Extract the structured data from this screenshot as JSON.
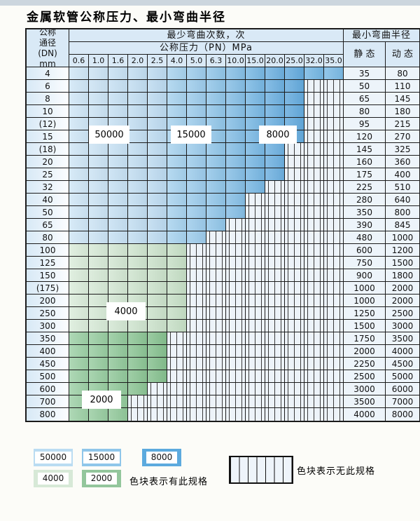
{
  "title": "金属软管公称压力、最小弯曲半径",
  "table": {
    "corner": [
      "公称",
      "通径",
      "(DN)",
      "mm"
    ],
    "bend_times_header": "最少弯曲次数，次",
    "pressure_header": "公称压力（PN）MPa",
    "pressures": [
      "0.6",
      "1.0",
      "1.6",
      "2.0",
      "2.5",
      "4.0",
      "5.0",
      "6.3",
      "10.0",
      "15.0",
      "20.0",
      "25.0",
      "32.0",
      "35.0"
    ],
    "radius_header": "最小弯曲半径",
    "static_header": "静 态",
    "dynamic_header": "动 态",
    "rows": [
      {
        "dn": "4",
        "colored": 14,
        "zone": "blue",
        "static": "35",
        "dynamic": "80"
      },
      {
        "dn": "6",
        "colored": 12,
        "zone": "blue",
        "static": "50",
        "dynamic": "110"
      },
      {
        "dn": "8",
        "colored": 12,
        "zone": "blue",
        "static": "65",
        "dynamic": "145"
      },
      {
        "dn": "10",
        "colored": 12,
        "zone": "blue",
        "static": "80",
        "dynamic": "180"
      },
      {
        "dn": "(12)",
        "colored": 12,
        "zone": "blue",
        "static": "95",
        "dynamic": "215"
      },
      {
        "dn": "15",
        "colored": 12,
        "zone": "blue",
        "static": "120",
        "dynamic": "270"
      },
      {
        "dn": "(18)",
        "colored": 11,
        "zone": "blue",
        "static": "145",
        "dynamic": "325"
      },
      {
        "dn": "20",
        "colored": 11,
        "zone": "blue",
        "static": "160",
        "dynamic": "360"
      },
      {
        "dn": "25",
        "colored": 11,
        "zone": "blue",
        "static": "175",
        "dynamic": "400"
      },
      {
        "dn": "32",
        "colored": 10,
        "zone": "blue",
        "static": "225",
        "dynamic": "510"
      },
      {
        "dn": "40",
        "colored": 9,
        "zone": "blue",
        "static": "280",
        "dynamic": "640"
      },
      {
        "dn": "50",
        "colored": 9,
        "zone": "blue",
        "static": "350",
        "dynamic": "800"
      },
      {
        "dn": "65",
        "colored": 8,
        "zone": "blue",
        "static": "390",
        "dynamic": "845"
      },
      {
        "dn": "80",
        "colored": 7,
        "zone": "blue",
        "static": "480",
        "dynamic": "1000"
      },
      {
        "dn": "100",
        "colored": 6,
        "zone": "green_light",
        "static": "600",
        "dynamic": "1200"
      },
      {
        "dn": "125",
        "colored": 6,
        "zone": "green_light",
        "static": "750",
        "dynamic": "1500"
      },
      {
        "dn": "150",
        "colored": 6,
        "zone": "green_light",
        "static": "900",
        "dynamic": "1800"
      },
      {
        "dn": "(175)",
        "colored": 6,
        "zone": "green_light",
        "static": "1000",
        "dynamic": "2000"
      },
      {
        "dn": "200",
        "colored": 6,
        "zone": "green_light",
        "static": "1000",
        "dynamic": "2000"
      },
      {
        "dn": "250",
        "colored": 6,
        "zone": "green_light",
        "static": "1250",
        "dynamic": "2500"
      },
      {
        "dn": "300",
        "colored": 6,
        "zone": "green_light",
        "static": "1500",
        "dynamic": "3000"
      },
      {
        "dn": "350",
        "colored": 5,
        "zone": "green_dark",
        "static": "1750",
        "dynamic": "3500"
      },
      {
        "dn": "400",
        "colored": 5,
        "zone": "green_dark",
        "static": "2000",
        "dynamic": "4000"
      },
      {
        "dn": "450",
        "colored": 5,
        "zone": "green_dark",
        "static": "2250",
        "dynamic": "4500"
      },
      {
        "dn": "500",
        "colored": 5,
        "zone": "green_dark",
        "static": "2500",
        "dynamic": "5000"
      },
      {
        "dn": "600",
        "colored": 4,
        "zone": "green_dark",
        "static": "3000",
        "dynamic": "6000"
      },
      {
        "dn": "700",
        "colored": 3,
        "zone": "green_dark",
        "static": "3500",
        "dynamic": "7000"
      },
      {
        "dn": "800",
        "colored": 3,
        "zone": "green_dark",
        "static": "4000",
        "dynamic": "8000"
      }
    ]
  },
  "overlays": [
    {
      "text": "50000"
    },
    {
      "text": "15000"
    },
    {
      "text": "8000"
    },
    {
      "text": "4000"
    },
    {
      "text": "2000"
    }
  ],
  "legend": {
    "items": [
      {
        "label": "50000",
        "color": "#badcf2"
      },
      {
        "label": "15000",
        "color": "#8fc6ea"
      },
      {
        "label": "8000",
        "color": "#5caade"
      },
      {
        "label": "4000",
        "color": "#d7e9d7"
      },
      {
        "label": "2000",
        "color": "#93c69c"
      }
    ],
    "exists_label": "色块表示有此规格",
    "none_label": "色块表示无此规格"
  },
  "colors": {
    "blue_cols": [
      "#cfe6f6",
      "#cbe3f4",
      "#c6e0f3",
      "#c1ddf1",
      "#bcdaf0",
      "#a7d2ee",
      "#9ccbeb",
      "#90c5e8",
      "#85bee5",
      "#77b7e3",
      "#6db0e0",
      "#63aadd",
      "#74b6e3",
      "#7bbae5"
    ],
    "green_light_cols": [
      "#daecda",
      "#d6e9d6",
      "#d2e6d2",
      "#cee4ce",
      "#cae1ca",
      "#c6dfc6"
    ],
    "green_dark_cols": [
      "#9dd0a6",
      "#97cca0",
      "#91c89a",
      "#8bc494",
      "#85c08e"
    ],
    "hatch_bg": "#edf3f9",
    "header_bg": "#d9e9f6"
  }
}
